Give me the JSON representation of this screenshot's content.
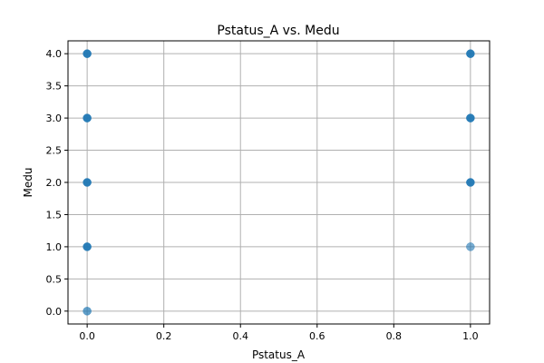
{
  "chart_data": {
    "type": "scatter",
    "title": "Pstatus_A vs. Medu",
    "xlabel": "Pstatus_A",
    "ylabel": "Medu",
    "xlim": [
      -0.05,
      1.05
    ],
    "ylim": [
      -0.2,
      4.2
    ],
    "x_ticks": [
      0.0,
      0.2,
      0.4,
      0.6,
      0.8,
      1.0
    ],
    "y_ticks": [
      0.0,
      0.5,
      1.0,
      1.5,
      2.0,
      2.5,
      3.0,
      3.5,
      4.0
    ],
    "x_tick_labels": [
      "0.0",
      "0.2",
      "0.4",
      "0.6",
      "0.8",
      "1.0"
    ],
    "y_tick_labels": [
      "0.0",
      "0.5",
      "1.0",
      "1.5",
      "2.0",
      "2.5",
      "3.0",
      "3.5",
      "4.0"
    ],
    "grid": true,
    "marker_color": "#1f77b4",
    "points": [
      {
        "x": 0,
        "y": 0,
        "opacity": 0.7
      },
      {
        "x": 0,
        "y": 1,
        "opacity": 0.95
      },
      {
        "x": 0,
        "y": 2,
        "opacity": 0.95
      },
      {
        "x": 0,
        "y": 3,
        "opacity": 0.95
      },
      {
        "x": 0,
        "y": 4,
        "opacity": 0.95
      },
      {
        "x": 1,
        "y": 1,
        "opacity": 0.6
      },
      {
        "x": 1,
        "y": 2,
        "opacity": 0.95
      },
      {
        "x": 1,
        "y": 3,
        "opacity": 0.95
      },
      {
        "x": 1,
        "y": 4,
        "opacity": 0.95
      }
    ]
  }
}
